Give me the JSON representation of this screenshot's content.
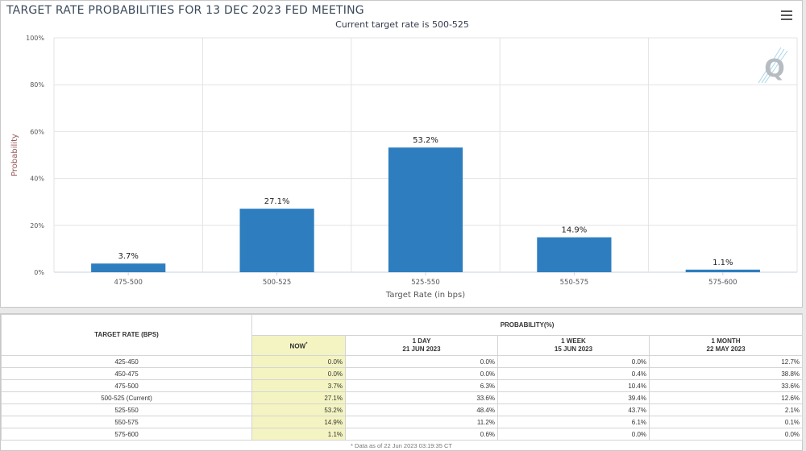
{
  "chart_data": {
    "type": "bar",
    "title": "TARGET RATE PROBABILITIES FOR 13 DEC 2023 FED MEETING",
    "subtitle": "Current target rate is 500-525",
    "xlabel": "Target Rate (in bps)",
    "ylabel": "Probability",
    "categories": [
      "475-500",
      "500-525",
      "525-550",
      "550-575",
      "575-600"
    ],
    "values": [
      3.7,
      27.1,
      53.2,
      14.9,
      1.1
    ],
    "data_labels": [
      "3.7%",
      "27.1%",
      "53.2%",
      "14.9%",
      "1.1%"
    ],
    "ylim": [
      0,
      100
    ],
    "y_ticks": [
      "0%",
      "20%",
      "40%",
      "60%",
      "80%",
      "100%"
    ],
    "y_tick_values": [
      0,
      20,
      40,
      60,
      80,
      100
    ],
    "bar_color": "#2e7ebf",
    "grid": true,
    "legend": "none"
  },
  "icons": {
    "menu": "hamburger-menu-icon",
    "logo": "q-logo-icon"
  },
  "table": {
    "rate_header": "TARGET RATE (BPS)",
    "prob_header": "PROBABILITY(%)",
    "columns": [
      {
        "label": "NOW",
        "sup": "*",
        "date": ""
      },
      {
        "label": "1 DAY",
        "date": "21 JUN 2023"
      },
      {
        "label": "1 WEEK",
        "date": "15 JUN 2023"
      },
      {
        "label": "1 MONTH",
        "date": "22 MAY 2023"
      }
    ],
    "rows": [
      {
        "rate": "425-450",
        "values": [
          "0.0%",
          "0.0%",
          "0.0%",
          "12.7%"
        ]
      },
      {
        "rate": "450-475",
        "values": [
          "0.0%",
          "0.0%",
          "0.4%",
          "38.8%"
        ]
      },
      {
        "rate": "475-500",
        "values": [
          "3.7%",
          "6.3%",
          "10.4%",
          "33.6%"
        ]
      },
      {
        "rate": "500-525 (Current)",
        "values": [
          "27.1%",
          "33.6%",
          "39.4%",
          "12.6%"
        ]
      },
      {
        "rate": "525-550",
        "values": [
          "53.2%",
          "48.4%",
          "43.7%",
          "2.1%"
        ]
      },
      {
        "rate": "550-575",
        "values": [
          "14.9%",
          "11.2%",
          "6.1%",
          "0.1%"
        ]
      },
      {
        "rate": "575-600",
        "values": [
          "1.1%",
          "0.6%",
          "0.0%",
          "0.0%"
        ]
      }
    ],
    "footnote": "* Data as of 22 Jun 2023 03:19:35 CT"
  }
}
